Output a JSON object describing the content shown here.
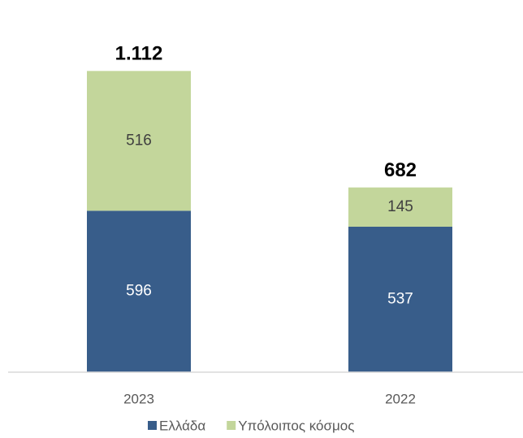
{
  "chart_data": {
    "type": "stacked-bar",
    "categories": [
      "2023",
      "2022"
    ],
    "series": [
      {
        "name": "Ελλάδα",
        "color": "#385d8a",
        "label_color": "#ffffff",
        "values": [
          596,
          537
        ]
      },
      {
        "name": "Υπόλοιπος κόσμος",
        "color": "#c3d69b",
        "label_color": "#404040",
        "values": [
          516,
          145
        ]
      }
    ],
    "totals": {
      "values": [
        1112,
        682
      ],
      "value_labels": [
        "1.112",
        "682"
      ]
    },
    "ylim": [
      0,
      1200
    ],
    "legend": "bottom"
  }
}
